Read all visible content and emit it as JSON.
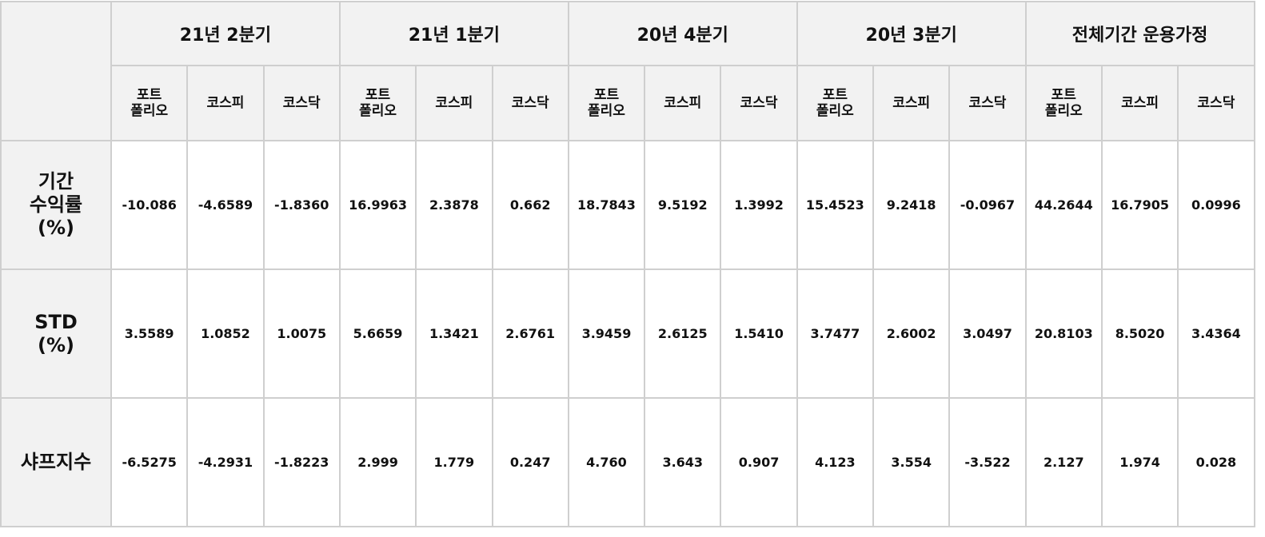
{
  "table": {
    "groups": [
      "21년 2분기",
      "21년 1분기",
      "20년 4분기",
      "20년 3분기",
      "전체기간 운용가정"
    ],
    "subheaders": [
      "포트\n폴리오",
      "코스피",
      "코스닥",
      "포트\n폴리오",
      "코스피",
      "코스닥",
      "포트\n폴리오",
      "코스피",
      "코스닥",
      "포트\n폴리오",
      "코스피",
      "코스닥",
      "포트\n폴리오",
      "코스피",
      "코스닥"
    ],
    "rows": [
      {
        "label": "기간\n수익률\n(%)",
        "cells": [
          "-10.086",
          "-4.6589",
          "-1.8360",
          "16.9963",
          "2.3878",
          "0.662",
          "18.7843",
          "9.5192",
          "1.3992",
          "15.4523",
          "9.2418",
          "-0.0967",
          "44.2644",
          "16.7905",
          "0.0996"
        ]
      },
      {
        "label": "STD\n(%)",
        "cells": [
          "3.5589",
          "1.0852",
          "1.0075",
          "5.6659",
          "1.3421",
          "2.6761",
          "3.9459",
          "2.6125",
          "1.5410",
          "3.7477",
          "2.6002",
          "3.0497",
          "20.8103",
          "8.5020",
          "3.4364"
        ]
      },
      {
        "label": "샤프지수",
        "cells": [
          "-6.5275",
          "-4.2931",
          "-1.8223",
          "2.999",
          "1.779",
          "0.247",
          "4.760",
          "3.643",
          "0.907",
          "4.123",
          "3.554",
          "-3.522",
          "2.127",
          "1.974",
          "0.028"
        ]
      }
    ]
  }
}
